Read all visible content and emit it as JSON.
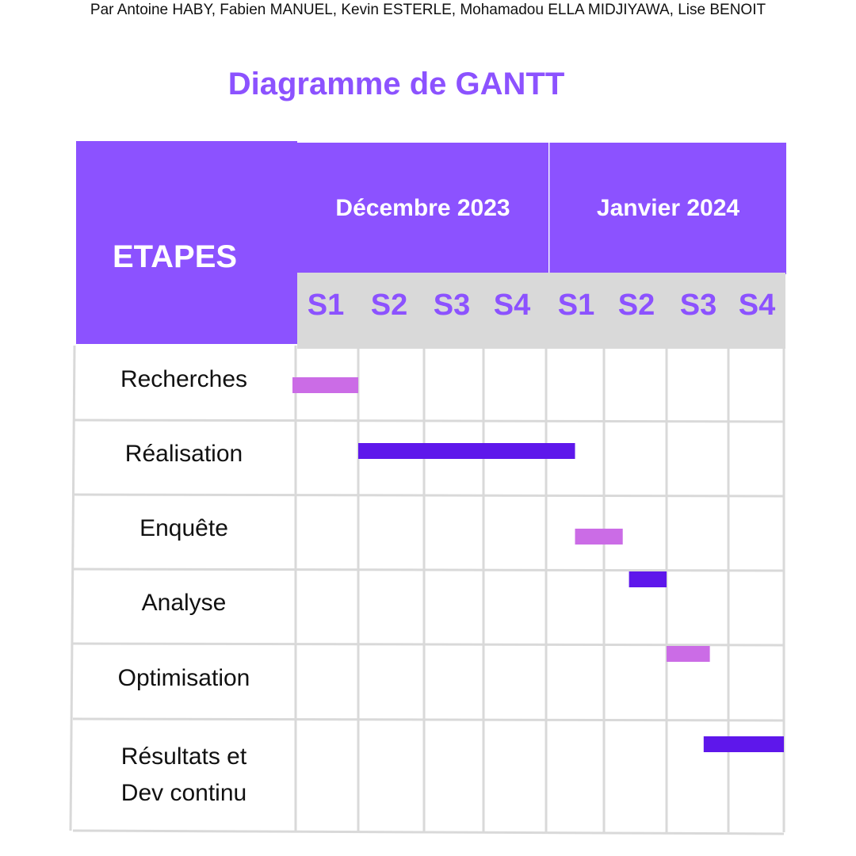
{
  "authors": "Par Antoine HABY,  Fabien MANUEL, Kevin ESTERLE, Mohamadou ELLA MIDJIYAWA, Lise BENOIT",
  "title": "Diagramme de GANTT",
  "header": {
    "stages_label": "ETAPES"
  },
  "colors": {
    "header": "#8c52ff",
    "week_band": "#d9d9d9",
    "bar_light": "#cb6ce6",
    "bar_dark": "#5e17eb",
    "grid": "#d9d9d9"
  },
  "chart_data": {
    "type": "gantt",
    "title": "Diagramme de GANTT",
    "months": [
      {
        "label": "Décembre 2023",
        "weeks": [
          "S1",
          "S2",
          "S3",
          "S4"
        ]
      },
      {
        "label": "Janvier 2024",
        "weeks": [
          "S1",
          "S2",
          "S3",
          "S4"
        ]
      }
    ],
    "tasks": [
      {
        "label": "Recherches",
        "start": 0,
        "end": 1,
        "color": "#cb6ce6"
      },
      {
        "label": "Réalisation",
        "start": 1,
        "end": 4.5,
        "color": "#5e17eb"
      },
      {
        "label": "Enquête",
        "start": 4.5,
        "end": 5.3,
        "color": "#cb6ce6"
      },
      {
        "label": "Analyse",
        "start": 5.4,
        "end": 6,
        "color": "#5e17eb"
      },
      {
        "label": "Optimisation",
        "start": 6,
        "end": 6.7,
        "color": "#cb6ce6"
      },
      {
        "label": "Résultats et\nDev continu",
        "start": 6.6,
        "end": 8,
        "color": "#5e17eb"
      }
    ]
  }
}
